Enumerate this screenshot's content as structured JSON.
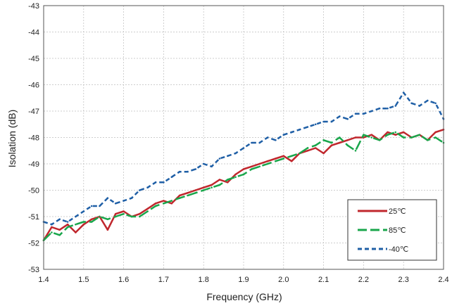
{
  "chart_data": {
    "type": "line",
    "xlabel": "Frequency (GHz)",
    "ylabel": "Isolation (dB)",
    "xlim": [
      1.4,
      2.4
    ],
    "ylim": [
      -53,
      -43
    ],
    "xticks": [
      "1.4",
      "1.5",
      "1.6",
      "1.7",
      "1.8",
      "1.9",
      "2.0",
      "2.1",
      "2.2",
      "2.3",
      "2.4"
    ],
    "yticks": [
      "-43",
      "-44",
      "-45",
      "-46",
      "-47",
      "-48",
      "-49",
      "-50",
      "-51",
      "-52",
      "-53"
    ],
    "grid": true,
    "legend_position": "bottom-right",
    "series": [
      {
        "name": "25℃",
        "color": "#c0272d",
        "style": "solid",
        "x": [
          1.4,
          1.42,
          1.44,
          1.46,
          1.48,
          1.5,
          1.52,
          1.54,
          1.56,
          1.58,
          1.6,
          1.62,
          1.64,
          1.66,
          1.68,
          1.7,
          1.72,
          1.74,
          1.76,
          1.78,
          1.8,
          1.82,
          1.84,
          1.86,
          1.88,
          1.9,
          1.92,
          1.94,
          1.96,
          1.98,
          2.0,
          2.02,
          2.04,
          2.06,
          2.08,
          2.1,
          2.12,
          2.14,
          2.16,
          2.18,
          2.2,
          2.22,
          2.24,
          2.26,
          2.28,
          2.3,
          2.32,
          2.34,
          2.36,
          2.38,
          2.4
        ],
        "values": [
          -51.9,
          -51.4,
          -51.5,
          -51.3,
          -51.6,
          -51.3,
          -51.1,
          -51.0,
          -51.5,
          -50.9,
          -50.8,
          -51.0,
          -50.9,
          -50.7,
          -50.5,
          -50.4,
          -50.5,
          -50.2,
          -50.1,
          -50.0,
          -49.9,
          -49.8,
          -49.6,
          -49.7,
          -49.4,
          -49.2,
          -49.1,
          -49.0,
          -48.9,
          -48.8,
          -48.7,
          -48.9,
          -48.6,
          -48.5,
          -48.4,
          -48.6,
          -48.3,
          -48.2,
          -48.1,
          -48.0,
          -48.0,
          -47.9,
          -48.1,
          -47.8,
          -47.9,
          -47.8,
          -48.0,
          -47.9,
          -48.1,
          -47.8,
          -47.7
        ],
        "line_width": 2.5
      },
      {
        "name": "85℃",
        "color": "#19a64b",
        "style": "longdash",
        "x": [
          1.4,
          1.42,
          1.44,
          1.46,
          1.48,
          1.5,
          1.52,
          1.54,
          1.56,
          1.58,
          1.6,
          1.62,
          1.64,
          1.66,
          1.68,
          1.7,
          1.72,
          1.74,
          1.76,
          1.78,
          1.8,
          1.82,
          1.84,
          1.86,
          1.88,
          1.9,
          1.92,
          1.94,
          1.96,
          1.98,
          2.0,
          2.02,
          2.04,
          2.06,
          2.08,
          2.1,
          2.12,
          2.14,
          2.16,
          2.18,
          2.2,
          2.22,
          2.24,
          2.26,
          2.28,
          2.3,
          2.32,
          2.34,
          2.36,
          2.38,
          2.4
        ],
        "values": [
          -51.9,
          -51.6,
          -51.7,
          -51.4,
          -51.3,
          -51.2,
          -51.2,
          -51.0,
          -51.1,
          -51.0,
          -50.9,
          -51.0,
          -51.0,
          -50.8,
          -50.6,
          -50.5,
          -50.4,
          -50.3,
          -50.2,
          -50.1,
          -50.0,
          -49.9,
          -49.8,
          -49.6,
          -49.5,
          -49.4,
          -49.2,
          -49.1,
          -49.0,
          -48.9,
          -48.8,
          -48.7,
          -48.6,
          -48.4,
          -48.3,
          -48.1,
          -48.2,
          -48.0,
          -48.3,
          -48.5,
          -47.9,
          -48.0,
          -48.1,
          -47.9,
          -47.8,
          -48.0,
          -48.0,
          -47.9,
          -48.1,
          -48.0,
          -48.2
        ],
        "line_width": 2.5
      },
      {
        "name": "-40℃",
        "color": "#1f5fa6",
        "style": "dashed",
        "x": [
          1.4,
          1.42,
          1.44,
          1.46,
          1.48,
          1.5,
          1.52,
          1.54,
          1.56,
          1.58,
          1.6,
          1.62,
          1.64,
          1.66,
          1.68,
          1.7,
          1.72,
          1.74,
          1.76,
          1.78,
          1.8,
          1.82,
          1.84,
          1.86,
          1.88,
          1.9,
          1.92,
          1.94,
          1.96,
          1.98,
          2.0,
          2.02,
          2.04,
          2.06,
          2.08,
          2.1,
          2.12,
          2.14,
          2.16,
          2.18,
          2.2,
          2.22,
          2.24,
          2.26,
          2.28,
          2.3,
          2.32,
          2.34,
          2.36,
          2.38,
          2.4
        ],
        "values": [
          -51.2,
          -51.3,
          -51.1,
          -51.2,
          -51.0,
          -50.8,
          -50.6,
          -50.6,
          -50.3,
          -50.5,
          -50.4,
          -50.3,
          -50.0,
          -49.9,
          -49.7,
          -49.7,
          -49.5,
          -49.3,
          -49.3,
          -49.2,
          -49.0,
          -49.1,
          -48.8,
          -48.7,
          -48.6,
          -48.4,
          -48.2,
          -48.2,
          -48.0,
          -48.1,
          -47.9,
          -47.8,
          -47.7,
          -47.6,
          -47.5,
          -47.4,
          -47.4,
          -47.2,
          -47.3,
          -47.1,
          -47.1,
          -47.0,
          -46.9,
          -46.9,
          -46.8,
          -46.3,
          -46.7,
          -46.8,
          -46.6,
          -46.7,
          -47.3
        ],
        "line_width": 2.5
      }
    ]
  }
}
